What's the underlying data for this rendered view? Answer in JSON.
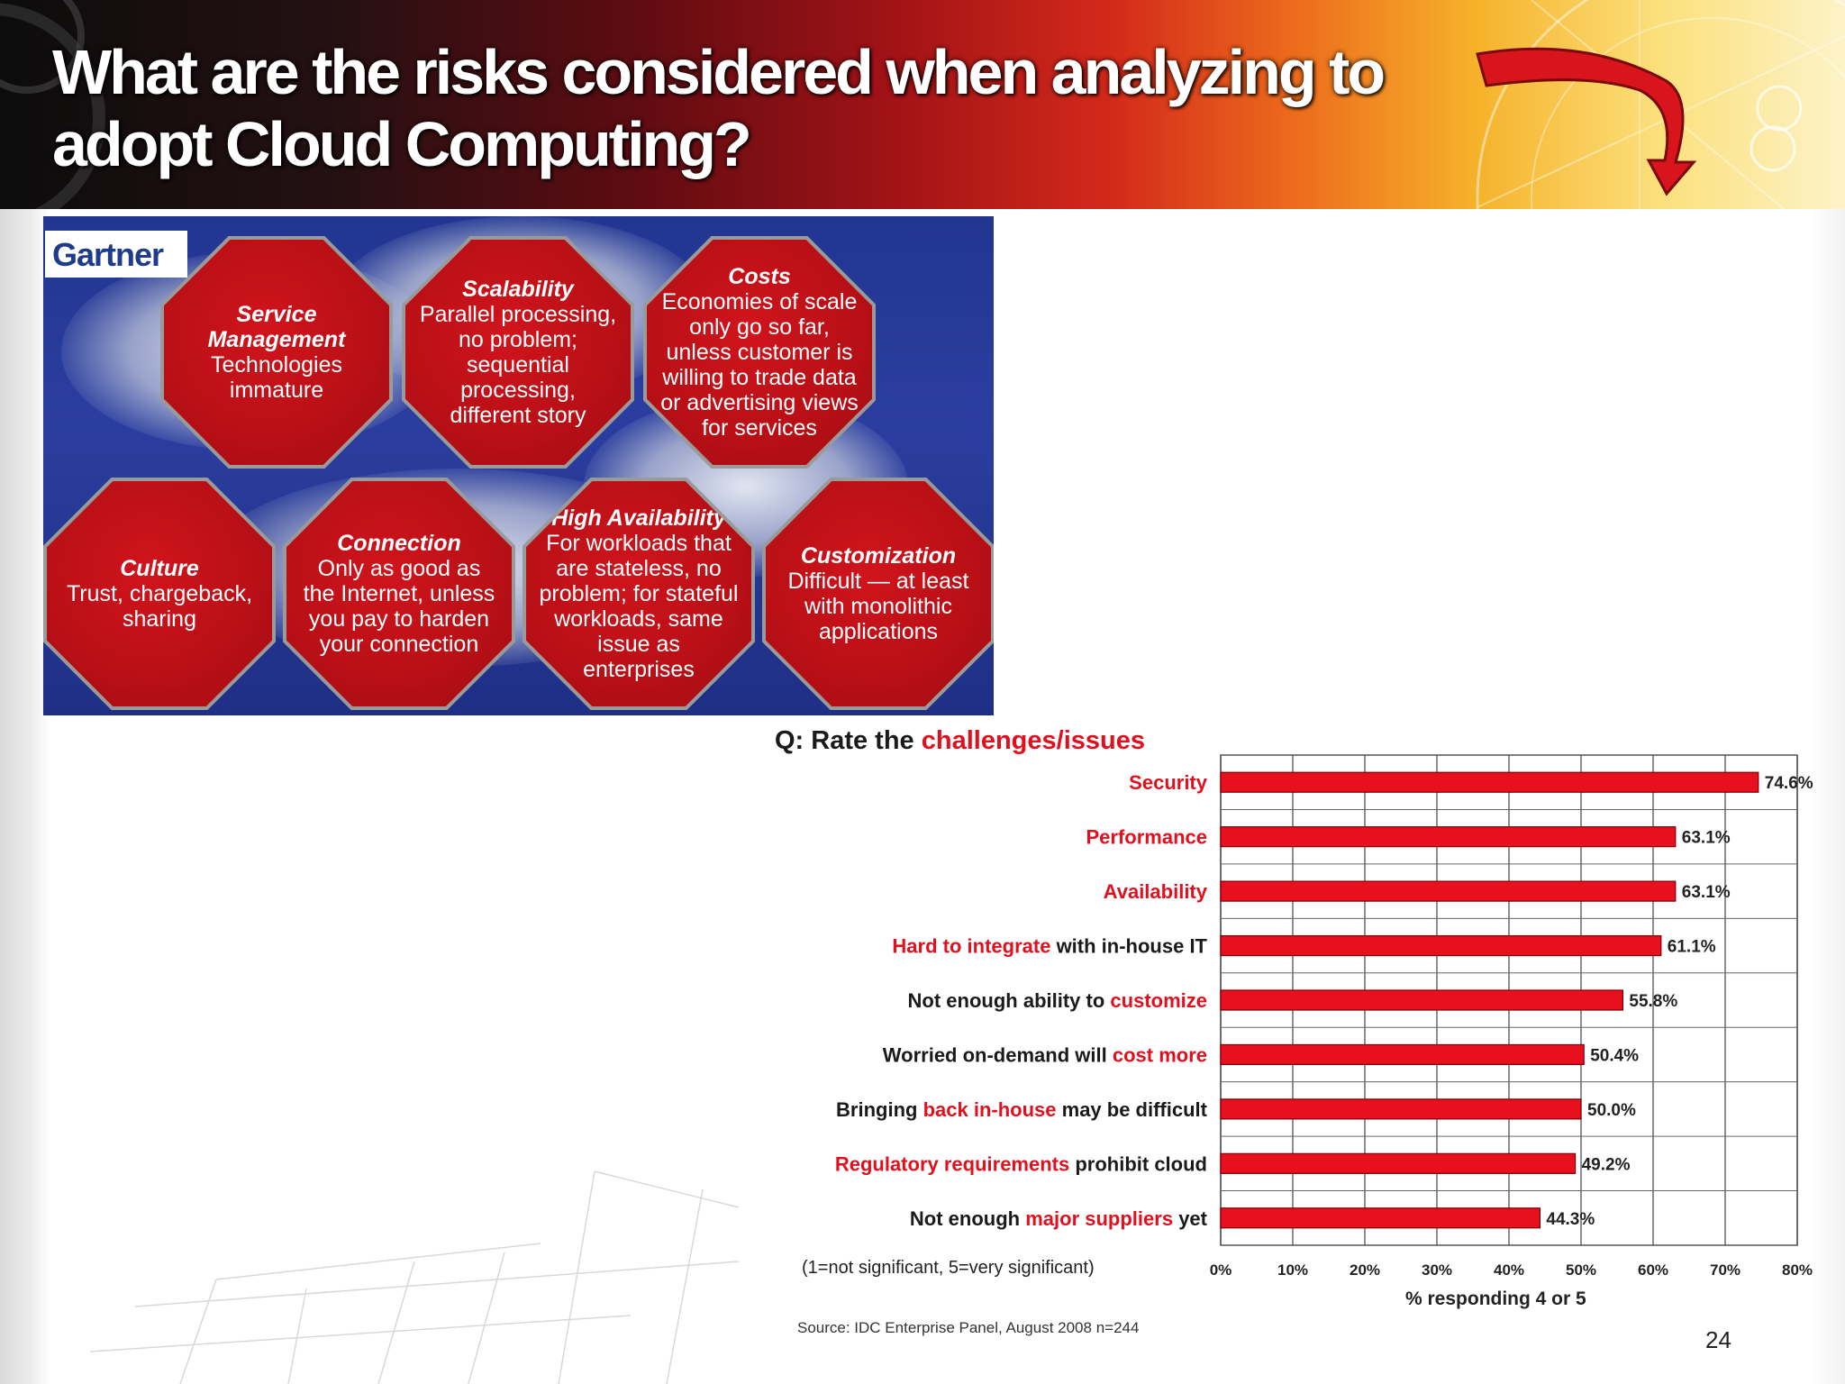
{
  "slide": {
    "title_line1": "What are the risks considered when analyzing to",
    "title_line2": "adopt Cloud Computing?",
    "page_number": "24"
  },
  "gartner": {
    "logo": "Gartner",
    "octagons": [
      {
        "head": "Service Management",
        "body": "Technologies immature"
      },
      {
        "head": "Scalability",
        "body": "Parallel processing, no problem; sequential processing, different story"
      },
      {
        "head": "Costs",
        "body": "Economies of scale only go so far, unless customer is willing to trade data or advertising views for services"
      },
      {
        "head": "Culture",
        "body": "Trust, chargeback, sharing"
      },
      {
        "head": "Connection",
        "body": "Only as good as the Internet, unless you pay to harden your connection"
      },
      {
        "head": "High Availability",
        "body": "For workloads that are stateless, no problem; for stateful workloads, same issue as enterprises"
      },
      {
        "head": "Customization",
        "body": "Difficult — at least with monolithic applications"
      }
    ]
  },
  "chart": {
    "question_prefix": "Q: Rate the ",
    "question_highlight": "challenges/issues",
    "note": "(1=not significant, 5=very significant)",
    "source": "Source: IDC Enterprise Panel, August 2008  n=244",
    "colors": {
      "bar": "#e8101c",
      "bar_edge": "#7a0008",
      "highlight_text": "#e0101e",
      "plain_text": "#1a1a1a"
    }
  },
  "chart_data": {
    "type": "bar",
    "orientation": "horizontal",
    "categories": [
      "Security",
      "Performance",
      "Availability",
      "Hard to integrate with in-house IT",
      "Not enough ability to customize",
      "Worried on-demand will cost more",
      "Bringing back in-house may be difficult",
      "Regulatory requirements prohibit cloud",
      "Not enough major suppliers yet"
    ],
    "category_parts": [
      [
        {
          "t": "Security",
          "hl": true
        }
      ],
      [
        {
          "t": "Performance",
          "hl": true
        }
      ],
      [
        {
          "t": "Availability",
          "hl": true
        }
      ],
      [
        {
          "t": "Hard to integrate",
          "hl": true
        },
        {
          "t": " with in-house IT",
          "hl": false
        }
      ],
      [
        {
          "t": "Not enough ability to ",
          "hl": false
        },
        {
          "t": "customize",
          "hl": true
        }
      ],
      [
        {
          "t": "Worried on-demand will ",
          "hl": false
        },
        {
          "t": "cost more",
          "hl": true
        }
      ],
      [
        {
          "t": "Bringing ",
          "hl": false
        },
        {
          "t": "back in-house",
          "hl": true
        },
        {
          "t": " may be difficult",
          "hl": false
        }
      ],
      [
        {
          "t": "Regulatory requirements",
          "hl": true
        },
        {
          "t": " prohibit cloud",
          "hl": false
        }
      ],
      [
        {
          "t": "Not enough ",
          "hl": false
        },
        {
          "t": "major suppliers",
          "hl": true
        },
        {
          "t": " yet",
          "hl": false
        }
      ]
    ],
    "values": [
      74.6,
      63.1,
      63.1,
      61.1,
      55.8,
      50.4,
      50.0,
      49.2,
      44.3
    ],
    "value_labels": [
      "74.6%",
      "63.1%",
      "63.1%",
      "61.1%",
      "55.8%",
      "50.4%",
      "50.0%",
      "49.2%",
      "44.3%"
    ],
    "xticks": [
      "0%",
      "10%",
      "20%",
      "30%",
      "40%",
      "50%",
      "60%",
      "70%",
      "80%"
    ],
    "xlim": [
      0,
      80
    ],
    "xlabel": "% responding 4 or 5",
    "grid": true
  }
}
